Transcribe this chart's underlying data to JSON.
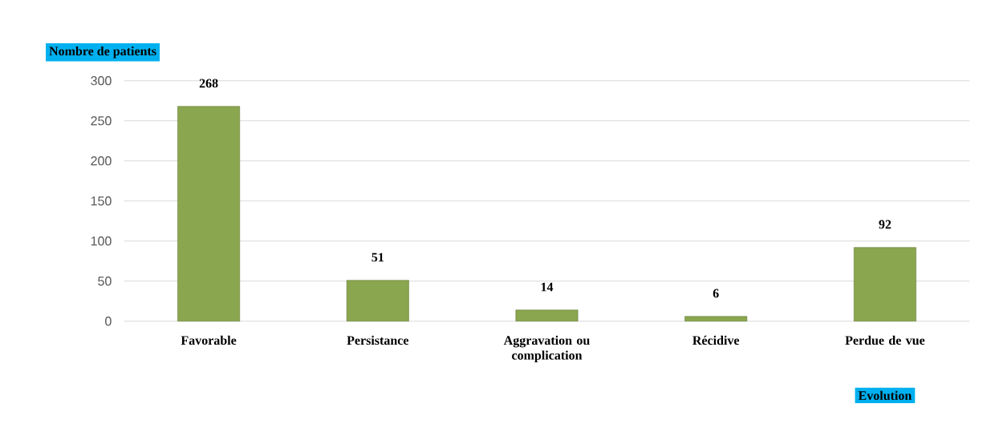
{
  "chart_data": {
    "type": "bar",
    "xlabel": "Evolution",
    "ylabel": "Nombre de patients",
    "categories": [
      "Favorable",
      "Persistance",
      "Aggravation ou complication",
      "Récidive",
      "Perdue de vue"
    ],
    "values": [
      268,
      51,
      14,
      6,
      92
    ],
    "color": "#8aa64e",
    "ylim": [
      0,
      300
    ],
    "yticks": [
      0,
      50,
      100,
      150,
      200,
      250,
      300
    ],
    "grid": "y",
    "data_labels": true
  }
}
